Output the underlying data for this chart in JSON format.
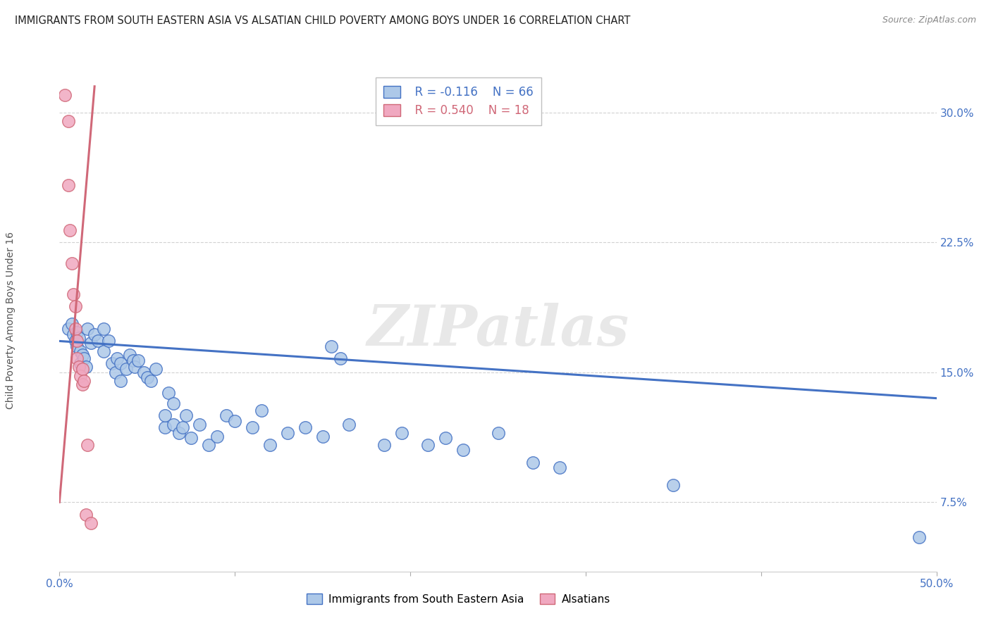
{
  "title": "IMMIGRANTS FROM SOUTH EASTERN ASIA VS ALSATIAN CHILD POVERTY AMONG BOYS UNDER 16 CORRELATION CHART",
  "source": "Source: ZipAtlas.com",
  "ylabel": "Child Poverty Among Boys Under 16",
  "xlim": [
    0.0,
    0.5
  ],
  "ylim": [
    0.035,
    0.325
  ],
  "color_blue": "#adc8e8",
  "color_pink": "#f0a8c0",
  "line_blue": "#4472c4",
  "line_pink": "#d06878",
  "legend_r1": "R = -0.116",
  "legend_n1": "N = 66",
  "legend_r2": "R = 0.540",
  "legend_n2": "N = 18",
  "watermark": "ZIPatlas",
  "blue_scatter": [
    [
      0.005,
      0.175
    ],
    [
      0.007,
      0.178
    ],
    [
      0.008,
      0.172
    ],
    [
      0.009,
      0.168
    ],
    [
      0.01,
      0.165
    ],
    [
      0.01,
      0.173
    ],
    [
      0.011,
      0.17
    ],
    [
      0.012,
      0.162
    ],
    [
      0.012,
      0.155
    ],
    [
      0.013,
      0.16
    ],
    [
      0.014,
      0.158
    ],
    [
      0.015,
      0.153
    ],
    [
      0.016,
      0.175
    ],
    [
      0.018,
      0.167
    ],
    [
      0.02,
      0.172
    ],
    [
      0.022,
      0.168
    ],
    [
      0.025,
      0.175
    ],
    [
      0.025,
      0.162
    ],
    [
      0.028,
      0.168
    ],
    [
      0.03,
      0.155
    ],
    [
      0.032,
      0.15
    ],
    [
      0.033,
      0.158
    ],
    [
      0.035,
      0.145
    ],
    [
      0.035,
      0.155
    ],
    [
      0.038,
      0.152
    ],
    [
      0.04,
      0.16
    ],
    [
      0.042,
      0.157
    ],
    [
      0.043,
      0.153
    ],
    [
      0.045,
      0.157
    ],
    [
      0.048,
      0.15
    ],
    [
      0.05,
      0.147
    ],
    [
      0.052,
      0.145
    ],
    [
      0.055,
      0.152
    ],
    [
      0.06,
      0.118
    ],
    [
      0.06,
      0.125
    ],
    [
      0.062,
      0.138
    ],
    [
      0.065,
      0.12
    ],
    [
      0.065,
      0.132
    ],
    [
      0.068,
      0.115
    ],
    [
      0.07,
      0.118
    ],
    [
      0.072,
      0.125
    ],
    [
      0.075,
      0.112
    ],
    [
      0.08,
      0.12
    ],
    [
      0.085,
      0.108
    ],
    [
      0.09,
      0.113
    ],
    [
      0.095,
      0.125
    ],
    [
      0.1,
      0.122
    ],
    [
      0.11,
      0.118
    ],
    [
      0.115,
      0.128
    ],
    [
      0.12,
      0.108
    ],
    [
      0.13,
      0.115
    ],
    [
      0.14,
      0.118
    ],
    [
      0.15,
      0.113
    ],
    [
      0.155,
      0.165
    ],
    [
      0.16,
      0.158
    ],
    [
      0.165,
      0.12
    ],
    [
      0.185,
      0.108
    ],
    [
      0.195,
      0.115
    ],
    [
      0.21,
      0.108
    ],
    [
      0.22,
      0.112
    ],
    [
      0.23,
      0.105
    ],
    [
      0.25,
      0.115
    ],
    [
      0.27,
      0.098
    ],
    [
      0.285,
      0.095
    ],
    [
      0.35,
      0.085
    ],
    [
      0.49,
      0.055
    ]
  ],
  "pink_scatter": [
    [
      0.003,
      0.31
    ],
    [
      0.005,
      0.295
    ],
    [
      0.005,
      0.258
    ],
    [
      0.006,
      0.232
    ],
    [
      0.007,
      0.213
    ],
    [
      0.008,
      0.195
    ],
    [
      0.009,
      0.188
    ],
    [
      0.009,
      0.175
    ],
    [
      0.01,
      0.168
    ],
    [
      0.01,
      0.158
    ],
    [
      0.011,
      0.153
    ],
    [
      0.012,
      0.148
    ],
    [
      0.013,
      0.152
    ],
    [
      0.013,
      0.143
    ],
    [
      0.014,
      0.145
    ],
    [
      0.015,
      0.068
    ],
    [
      0.016,
      0.108
    ],
    [
      0.018,
      0.063
    ]
  ],
  "blue_line_x": [
    0.0,
    0.5
  ],
  "blue_line_y": [
    0.168,
    0.135
  ],
  "pink_line_x": [
    0.0,
    0.02
  ],
  "pink_line_y": [
    0.075,
    0.315
  ]
}
